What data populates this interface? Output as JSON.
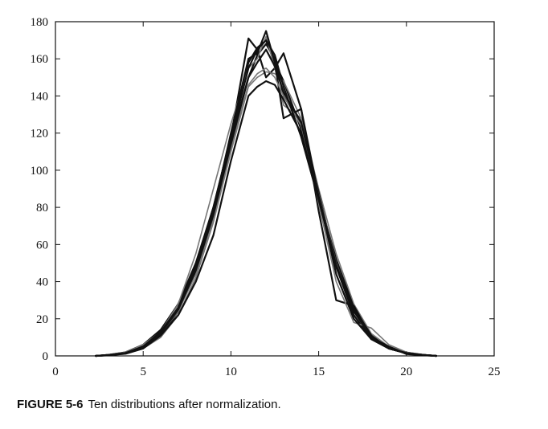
{
  "chart_data": {
    "type": "line",
    "title": "",
    "xlabel": "",
    "ylabel": "",
    "xlim": [
      0,
      25
    ],
    "ylim": [
      0,
      180
    ],
    "x_ticks": [
      0,
      5,
      10,
      15,
      20,
      25
    ],
    "y_ticks": [
      0,
      20,
      40,
      60,
      80,
      100,
      120,
      140,
      160,
      180
    ],
    "grid": false,
    "legend": "none",
    "line_color": "#111111",
    "alt_line_color": "#777777",
    "series": [
      {
        "x": [
          2.3,
          3,
          4,
          5,
          6,
          7,
          8,
          9,
          10,
          11,
          11.5,
          12,
          12.5,
          13,
          14,
          15,
          16,
          17,
          18,
          19,
          20,
          21,
          21.7
        ],
        "values": [
          0,
          0.5,
          1.5,
          5,
          12,
          25,
          45,
          75,
          115,
          158,
          166,
          170,
          158,
          148,
          122,
          85,
          50,
          25,
          10,
          4,
          1.5,
          0.5,
          0
        ]
      },
      {
        "x": [
          2.3,
          3,
          4,
          5,
          6,
          7,
          8,
          9,
          10,
          11,
          11.5,
          12,
          12.5,
          13,
          14,
          15,
          16,
          17,
          18,
          19,
          20,
          21,
          21.7
        ],
        "values": [
          0,
          0.3,
          1,
          4,
          10,
          22,
          42,
          72,
          110,
          145,
          150,
          153,
          152,
          148,
          128,
          90,
          55,
          28,
          12,
          5,
          2,
          0.6,
          0
        ]
      },
      {
        "x": [
          2.3,
          3,
          4,
          5,
          6,
          7,
          8,
          9,
          10,
          11,
          11.5,
          12,
          12.5,
          13,
          14,
          15,
          16,
          17,
          18,
          19,
          20,
          21,
          21.7
        ],
        "values": [
          0,
          0.5,
          2,
          6,
          14,
          28,
          50,
          80,
          118,
          171,
          165,
          150,
          155,
          163,
          133,
          78,
          30,
          27,
          10,
          5,
          1,
          0.4,
          0
        ]
      },
      {
        "x": [
          2.3,
          3,
          4,
          5,
          6,
          7,
          8,
          9,
          10,
          11,
          11.5,
          12,
          12.5,
          13,
          14,
          15,
          16,
          17,
          18,
          19,
          20,
          21,
          21.7
        ],
        "values": [
          0,
          0.4,
          1.5,
          5,
          11,
          24,
          46,
          78,
          116,
          150,
          162,
          168,
          160,
          140,
          125,
          88,
          48,
          22,
          9,
          4,
          1.5,
          0.4,
          0
        ]
      },
      {
        "x": [
          2.3,
          3,
          4,
          5,
          6,
          7,
          8,
          9,
          10,
          11,
          11.5,
          12,
          12.5,
          13,
          14,
          15,
          16,
          17,
          18,
          19,
          20,
          21,
          21.7
        ],
        "values": [
          0,
          0.6,
          2,
          6,
          13,
          28,
          55,
          90,
          125,
          155,
          160,
          172,
          155,
          135,
          128,
          82,
          40,
          18,
          15,
          6,
          2,
          0.5,
          0
        ]
      },
      {
        "x": [
          2.3,
          3,
          4,
          5,
          6,
          7,
          8,
          9,
          10,
          11,
          11.5,
          12,
          12.5,
          13,
          14,
          15,
          16,
          17,
          18,
          19,
          20,
          21,
          21.7
        ],
        "values": [
          0,
          0.3,
          1.2,
          4,
          11,
          22,
          40,
          65,
          105,
          140,
          145,
          148,
          146,
          138,
          120,
          85,
          52,
          26,
          11,
          4,
          1.5,
          0.5,
          0
        ]
      },
      {
        "x": [
          2.3,
          3,
          4,
          5,
          6,
          7,
          8,
          9,
          10,
          11,
          11.5,
          12,
          12.5,
          13,
          14,
          15,
          16,
          17,
          18,
          19,
          20,
          21,
          21.7
        ],
        "values": [
          0,
          0.5,
          1.6,
          5,
          12,
          26,
          48,
          78,
          120,
          160,
          163,
          175,
          158,
          128,
          133,
          86,
          44,
          20,
          9,
          4,
          1.4,
          0.5,
          0
        ]
      },
      {
        "x": [
          2.3,
          3,
          4,
          5,
          6,
          7,
          8,
          9,
          10,
          11,
          11.5,
          12,
          12.5,
          13,
          14,
          15,
          16,
          17,
          18,
          19,
          20,
          21,
          21.7
        ],
        "values": [
          0,
          0.4,
          1.5,
          5,
          12,
          24,
          44,
          74,
          112,
          146,
          152,
          155,
          150,
          140,
          124,
          87,
          50,
          24,
          10,
          4,
          1.5,
          0.5,
          0
        ]
      },
      {
        "x": [
          2.3,
          3,
          4,
          5,
          6,
          7,
          8,
          9,
          10,
          11,
          11.5,
          12,
          12.5,
          13,
          14,
          15,
          16,
          17,
          18,
          19,
          20,
          21,
          21.7
        ],
        "values": [
          0,
          0.5,
          1.5,
          5,
          13,
          26,
          48,
          80,
          118,
          155,
          165,
          170,
          162,
          145,
          118,
          84,
          48,
          24,
          10,
          4,
          1.5,
          0.5,
          0
        ]
      },
      {
        "x": [
          2.3,
          3,
          4,
          5,
          6,
          7,
          8,
          9,
          10,
          11,
          11.5,
          12,
          12.5,
          13,
          14,
          15,
          16,
          17,
          18,
          19,
          20,
          21,
          21.7
        ],
        "values": [
          0,
          0.4,
          1.4,
          5,
          12,
          25,
          46,
          76,
          114,
          150,
          158,
          165,
          156,
          142,
          126,
          86,
          49,
          25,
          10,
          4,
          1.5,
          0.5,
          0
        ]
      }
    ]
  },
  "caption": {
    "label": "FIGURE 5-6",
    "text": "Ten distributions after normalization."
  }
}
